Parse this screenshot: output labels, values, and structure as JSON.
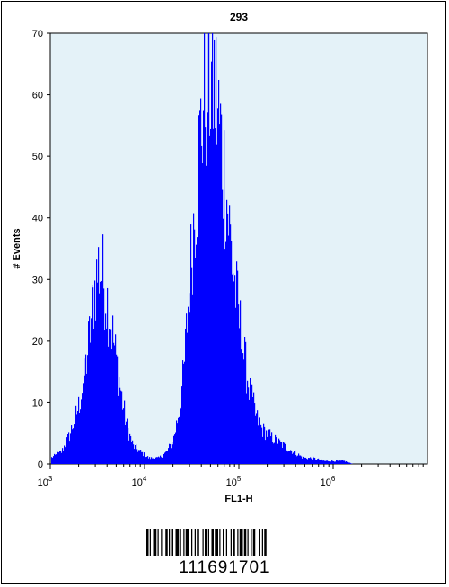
{
  "chart_data": {
    "type": "area",
    "title": "293",
    "xlabel": "FL1-H",
    "ylabel": "# Events",
    "x_scale": "log",
    "xlim": [
      1000,
      10000000
    ],
    "ylim": [
      0,
      70
    ],
    "x_ticks": [
      {
        "value": 1000,
        "base": "10",
        "exp": "3"
      },
      {
        "value": 10000,
        "base": "10",
        "exp": "4"
      },
      {
        "value": 100000,
        "base": "10",
        "exp": "5"
      },
      {
        "value": 1000000,
        "base": "10",
        "exp": "6"
      }
    ],
    "y_ticks": [
      0,
      10,
      20,
      30,
      40,
      50,
      60,
      70
    ],
    "grid": false,
    "background_color": "#e4f2f8",
    "fill_color": "#0000ff",
    "series": [
      {
        "x": [
          1000,
          1300,
          1600,
          2000,
          2300,
          2600,
          2900,
          3200,
          3500,
          3800,
          4200,
          4700,
          5200,
          5800,
          6500,
          7500,
          9000,
          11000,
          14000,
          17000,
          20000,
          23000,
          26000,
          29000,
          32000,
          36000,
          40000,
          44000,
          48000,
          52000,
          56000,
          60000,
          65000,
          70000,
          76000,
          82000,
          90000,
          100000,
          115000,
          130000,
          150000,
          170000,
          200000,
          240000,
          300000,
          380000,
          480000,
          600000,
          800000,
          1000000,
          1300000,
          1600000
        ],
        "y": [
          1,
          2,
          5,
          10,
          15,
          22,
          29,
          33,
          32,
          29,
          25,
          20,
          15,
          10,
          6,
          3,
          2,
          1,
          1,
          2,
          4,
          9,
          16,
          28,
          38,
          48,
          58,
          63,
          64,
          65,
          62,
          58,
          53,
          48,
          42,
          36,
          30,
          24,
          17,
          12,
          8,
          6,
          5,
          4,
          3,
          2,
          1,
          1,
          0.5,
          0.5,
          0.5,
          0
        ]
      }
    ]
  },
  "barcode": {
    "number": "111691701"
  }
}
